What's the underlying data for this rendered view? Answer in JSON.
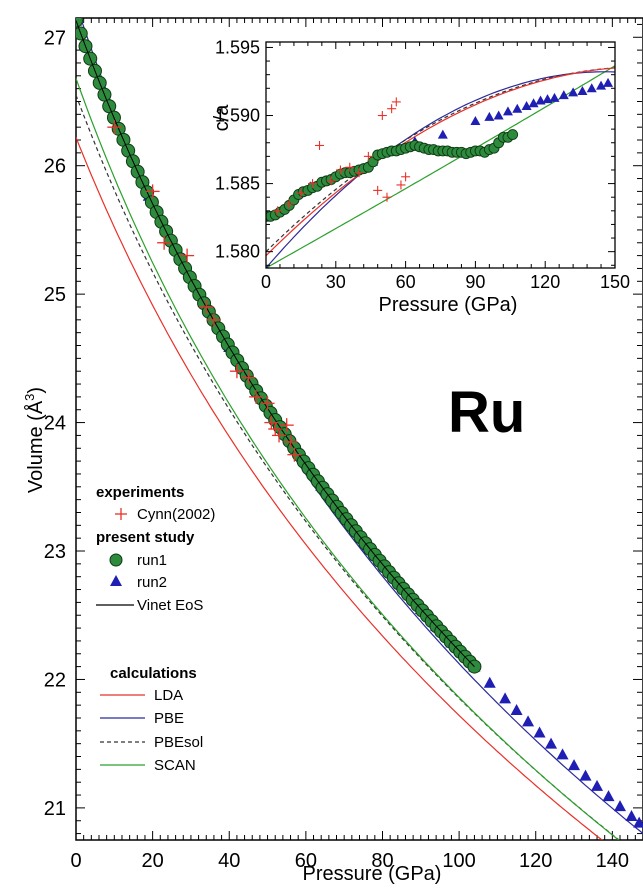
{
  "colors": {
    "LDA": "#e8312a",
    "PBE": "#2b2b9a",
    "PBEsol": "#333333",
    "SCAN": "#2ca02c",
    "Vinet": "#000000",
    "run1_fill": "#2e8b3e",
    "run1_edge": "#0d3a13",
    "run2": "#1f1fb4",
    "cynn": "#e8312a"
  },
  "chart_data": {
    "type": "scatter",
    "annotation": "Ru",
    "xlabel": "Pressure (GPa)",
    "ylabel_main": "Volume (Å",
    "ylabel_sup": "3",
    "ylabel_end": ")",
    "xlim": [
      0,
      148
    ],
    "ylim": [
      20.75,
      27.15
    ],
    "xticks": [
      0,
      20,
      40,
      60,
      80,
      100,
      120,
      140
    ],
    "yticks": [
      21,
      22,
      23,
      24,
      25,
      26,
      27
    ],
    "legend": {
      "experiments_header": "experiments",
      "cynn_label": "Cynn(2002)",
      "present_header": "present study",
      "run1_label": "run1",
      "run2_label": "run2",
      "vinet_label": "Vinet EoS",
      "calculations_header": "calculations",
      "lda_label": "LDA",
      "pbe_label": "PBE",
      "pbesol_label": "PBEsol",
      "scan_label": "SCAN"
    },
    "curves": {
      "Vinet": {
        "V0": 27.13,
        "K0": 330,
        "Kp": 4.3,
        "xmax": 104
      },
      "LDA": {
        "V0": 26.22,
        "K0": 348,
        "Kp": 4.6,
        "xmax": 148
      },
      "PBE": {
        "V0": 27.26,
        "K0": 300,
        "Kp": 4.6,
        "xmax": 148
      },
      "PBEsol": {
        "V0": 26.55,
        "K0": 332,
        "Kp": 4.6,
        "xmax": 148
      },
      "SCAN": {
        "V0": 26.68,
        "K0": 318,
        "Kp": 4.7,
        "xmax": 148
      }
    },
    "run1": {
      "p_start": 0,
      "p_end": 104,
      "count": 85
    },
    "run2": {
      "p_values": [
        0,
        19,
        40,
        64,
        76,
        90,
        94,
        98,
        104,
        108,
        112,
        115,
        118,
        121,
        124,
        127,
        130,
        133,
        136,
        139,
        142,
        145,
        147
      ]
    },
    "cynn": {
      "points": [
        [
          10,
          26.3
        ],
        [
          20,
          25.8
        ],
        [
          23,
          25.4
        ],
        [
          29,
          25.3
        ],
        [
          34,
          24.9
        ],
        [
          36,
          24.8
        ],
        [
          42,
          24.4
        ],
        [
          45,
          24.35
        ],
        [
          47,
          24.2
        ],
        [
          50,
          24.15
        ],
        [
          51,
          24.0
        ],
        [
          52,
          23.95
        ],
        [
          53,
          23.9
        ],
        [
          55,
          23.98
        ],
        [
          56,
          23.85
        ],
        [
          57,
          23.75
        ]
      ]
    },
    "inset": {
      "ylabel": "c/a",
      "xlabel": "Pressure (GPa)",
      "xlim": [
        0,
        150
      ],
      "ylim": [
        1.5788,
        1.5954
      ],
      "xticks": [
        0,
        30,
        60,
        90,
        120,
        150
      ],
      "yticks": [
        1.58,
        1.585,
        1.59,
        1.595
      ],
      "ytick_labels": [
        "1.580",
        "1.585",
        "1.590",
        "1.595"
      ],
      "curves": {
        "LDA": {
          "a": 1.5797,
          "b": 0.00017,
          "c": -5.2e-07
        },
        "PBE": {
          "a": 1.5788,
          "b": 0.000198,
          "c": -6.8e-07
        },
        "PBEsol": {
          "a": 1.58,
          "b": 0.000168,
          "c": -5.2e-07
        },
        "SCAN": {
          "a": 1.5788,
          "b": 9.6e-05,
          "c": 2e-08
        }
      },
      "run1": [
        [
          0,
          1.5826
        ],
        [
          2,
          1.5826
        ],
        [
          4,
          1.5827
        ],
        [
          6,
          1.5829
        ],
        [
          8,
          1.5831
        ],
        [
          10,
          1.5834
        ],
        [
          12,
          1.5838
        ],
        [
          14,
          1.5842
        ],
        [
          16,
          1.5844
        ],
        [
          18,
          1.5845
        ],
        [
          20,
          1.5847
        ],
        [
          22,
          1.5848
        ],
        [
          24,
          1.5851
        ],
        [
          26,
          1.5852
        ],
        [
          28,
          1.5853
        ],
        [
          30,
          1.5855
        ],
        [
          32,
          1.5857
        ],
        [
          34,
          1.5858
        ],
        [
          36,
          1.5858
        ],
        [
          38,
          1.5859
        ],
        [
          40,
          1.586
        ],
        [
          42,
          1.5861
        ],
        [
          44,
          1.5862
        ],
        [
          46,
          1.5866
        ],
        [
          48,
          1.5871
        ],
        [
          50,
          1.5872
        ],
        [
          52,
          1.5873
        ],
        [
          54,
          1.5874
        ],
        [
          56,
          1.5874
        ],
        [
          58,
          1.5875
        ],
        [
          60,
          1.5876
        ],
        [
          62,
          1.5877
        ],
        [
          64,
          1.5878
        ],
        [
          66,
          1.5877
        ],
        [
          68,
          1.5876
        ],
        [
          70,
          1.5875
        ],
        [
          72,
          1.5875
        ],
        [
          74,
          1.5874
        ],
        [
          76,
          1.5874
        ],
        [
          78,
          1.5874
        ],
        [
          80,
          1.5873
        ],
        [
          82,
          1.5873
        ],
        [
          84,
          1.5873
        ],
        [
          86,
          1.5872
        ],
        [
          88,
          1.5873
        ],
        [
          90,
          1.5874
        ],
        [
          92,
          1.5874
        ],
        [
          94,
          1.5873
        ],
        [
          96,
          1.5875
        ],
        [
          98,
          1.5876
        ],
        [
          100,
          1.588
        ],
        [
          102,
          1.5884
        ],
        [
          104,
          1.5884
        ],
        [
          106,
          1.5886
        ]
      ],
      "run2": [
        [
          0,
          1.5825
        ],
        [
          19,
          1.5848
        ],
        [
          40,
          1.586
        ],
        [
          46,
          1.5866
        ],
        [
          64,
          1.5881
        ],
        [
          76,
          1.5886
        ],
        [
          90,
          1.5896
        ],
        [
          96,
          1.5899
        ],
        [
          100,
          1.59
        ],
        [
          104,
          1.5903
        ],
        [
          108,
          1.5905
        ],
        [
          112,
          1.5907
        ],
        [
          115,
          1.5909
        ],
        [
          118,
          1.5911
        ],
        [
          121,
          1.5912
        ],
        [
          124,
          1.5913
        ],
        [
          128,
          1.5915
        ],
        [
          132,
          1.5917
        ],
        [
          136,
          1.5918
        ],
        [
          140,
          1.592
        ],
        [
          144,
          1.5922
        ],
        [
          147,
          1.5924
        ]
      ],
      "cynn": [
        [
          5,
          1.583
        ],
        [
          10,
          1.5835
        ],
        [
          15,
          1.5843
        ],
        [
          20,
          1.585
        ],
        [
          23,
          1.5878
        ],
        [
          28,
          1.5852
        ],
        [
          32,
          1.586
        ],
        [
          36,
          1.5862
        ],
        [
          40,
          1.5858
        ],
        [
          44,
          1.587
        ],
        [
          48,
          1.5845
        ],
        [
          50,
          1.59
        ],
        [
          52,
          1.584
        ],
        [
          54,
          1.5905
        ],
        [
          56,
          1.591
        ],
        [
          58,
          1.5849
        ],
        [
          60,
          1.5855
        ]
      ]
    }
  }
}
